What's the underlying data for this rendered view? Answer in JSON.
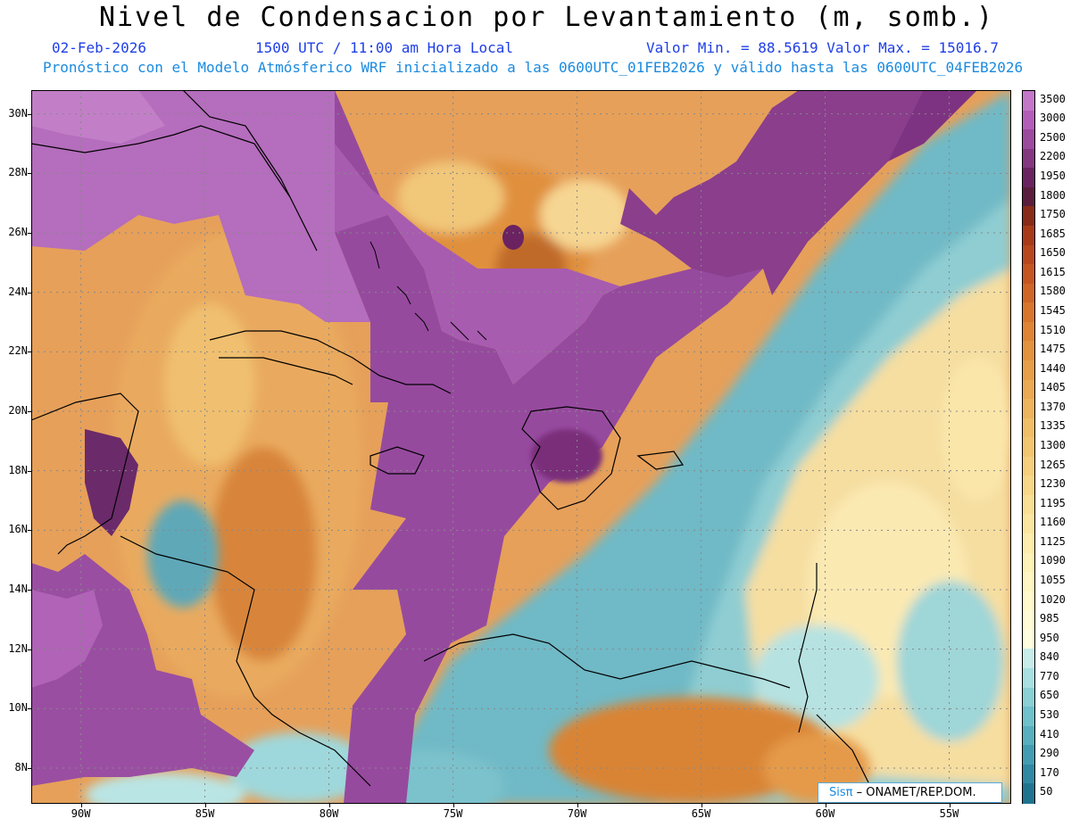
{
  "header": {
    "title": "Nivel de Condensacion por Levantamiento (m, somb.)",
    "date": "02-Feb-2026",
    "time": "1500 UTC / 11:00 am Hora Local",
    "min_max": "Valor Min. = 88.5619  Valor Max. = 15016.7",
    "forecast_info": "Pronóstico con el Modelo Atmósferico WRF inicializado a las 0600UTC_01FEB2026 y válido hasta las  0600UTC_04FEB2026"
  },
  "map": {
    "lat_labels": [
      "30N",
      "28N",
      "26N",
      "24N",
      "22N",
      "20N",
      "18N",
      "16N",
      "14N",
      "12N",
      "10N",
      "8N"
    ],
    "lon_labels": [
      "90W",
      "85W",
      "80W",
      "75W",
      "70W",
      "65W",
      "60W",
      "55W"
    ],
    "lat_range": [
      6.8,
      30.8
    ],
    "lon_range": [
      -92.0,
      -52.5
    ],
    "grid": "dotted"
  },
  "colorbar": {
    "labels": [
      "3500",
      "3000",
      "2500",
      "2200",
      "1950",
      "1800",
      "1750",
      "1685",
      "1650",
      "1615",
      "1580",
      "1545",
      "1510",
      "1475",
      "1440",
      "1405",
      "1370",
      "1335",
      "1300",
      "1265",
      "1230",
      "1195",
      "1160",
      "1125",
      "1090",
      "1055",
      "1020",
      "985",
      "950",
      "840",
      "770",
      "650",
      "530",
      "410",
      "290",
      "170",
      "50"
    ],
    "colors": [
      "#c477c8",
      "#b45db8",
      "#9c4a9e",
      "#84367f",
      "#6a2360",
      "#5a1e3c",
      "#8a2a18",
      "#a83a1a",
      "#b8471e",
      "#c55622",
      "#cf6526",
      "#d8752c",
      "#de8434",
      "#e3923e",
      "#e79e48",
      "#eaa952",
      "#edb45c",
      "#f0be66",
      "#f2c671",
      "#f5cf7c",
      "#f7d788",
      "#f9df94",
      "#fbe6a0",
      "#fcedac",
      "#fdf2b8",
      "#fef6c2",
      "#fff9cc",
      "#fffbd6",
      "#fffde0",
      "#c8ece9",
      "#a8dfe0",
      "#8ad0d5",
      "#6fc1cb",
      "#57afbf",
      "#429db2",
      "#2f89a3",
      "#1f7590"
    ]
  },
  "credit": {
    "logo": "Sisπ",
    "text": "– ONAMET/REP.DOM."
  }
}
